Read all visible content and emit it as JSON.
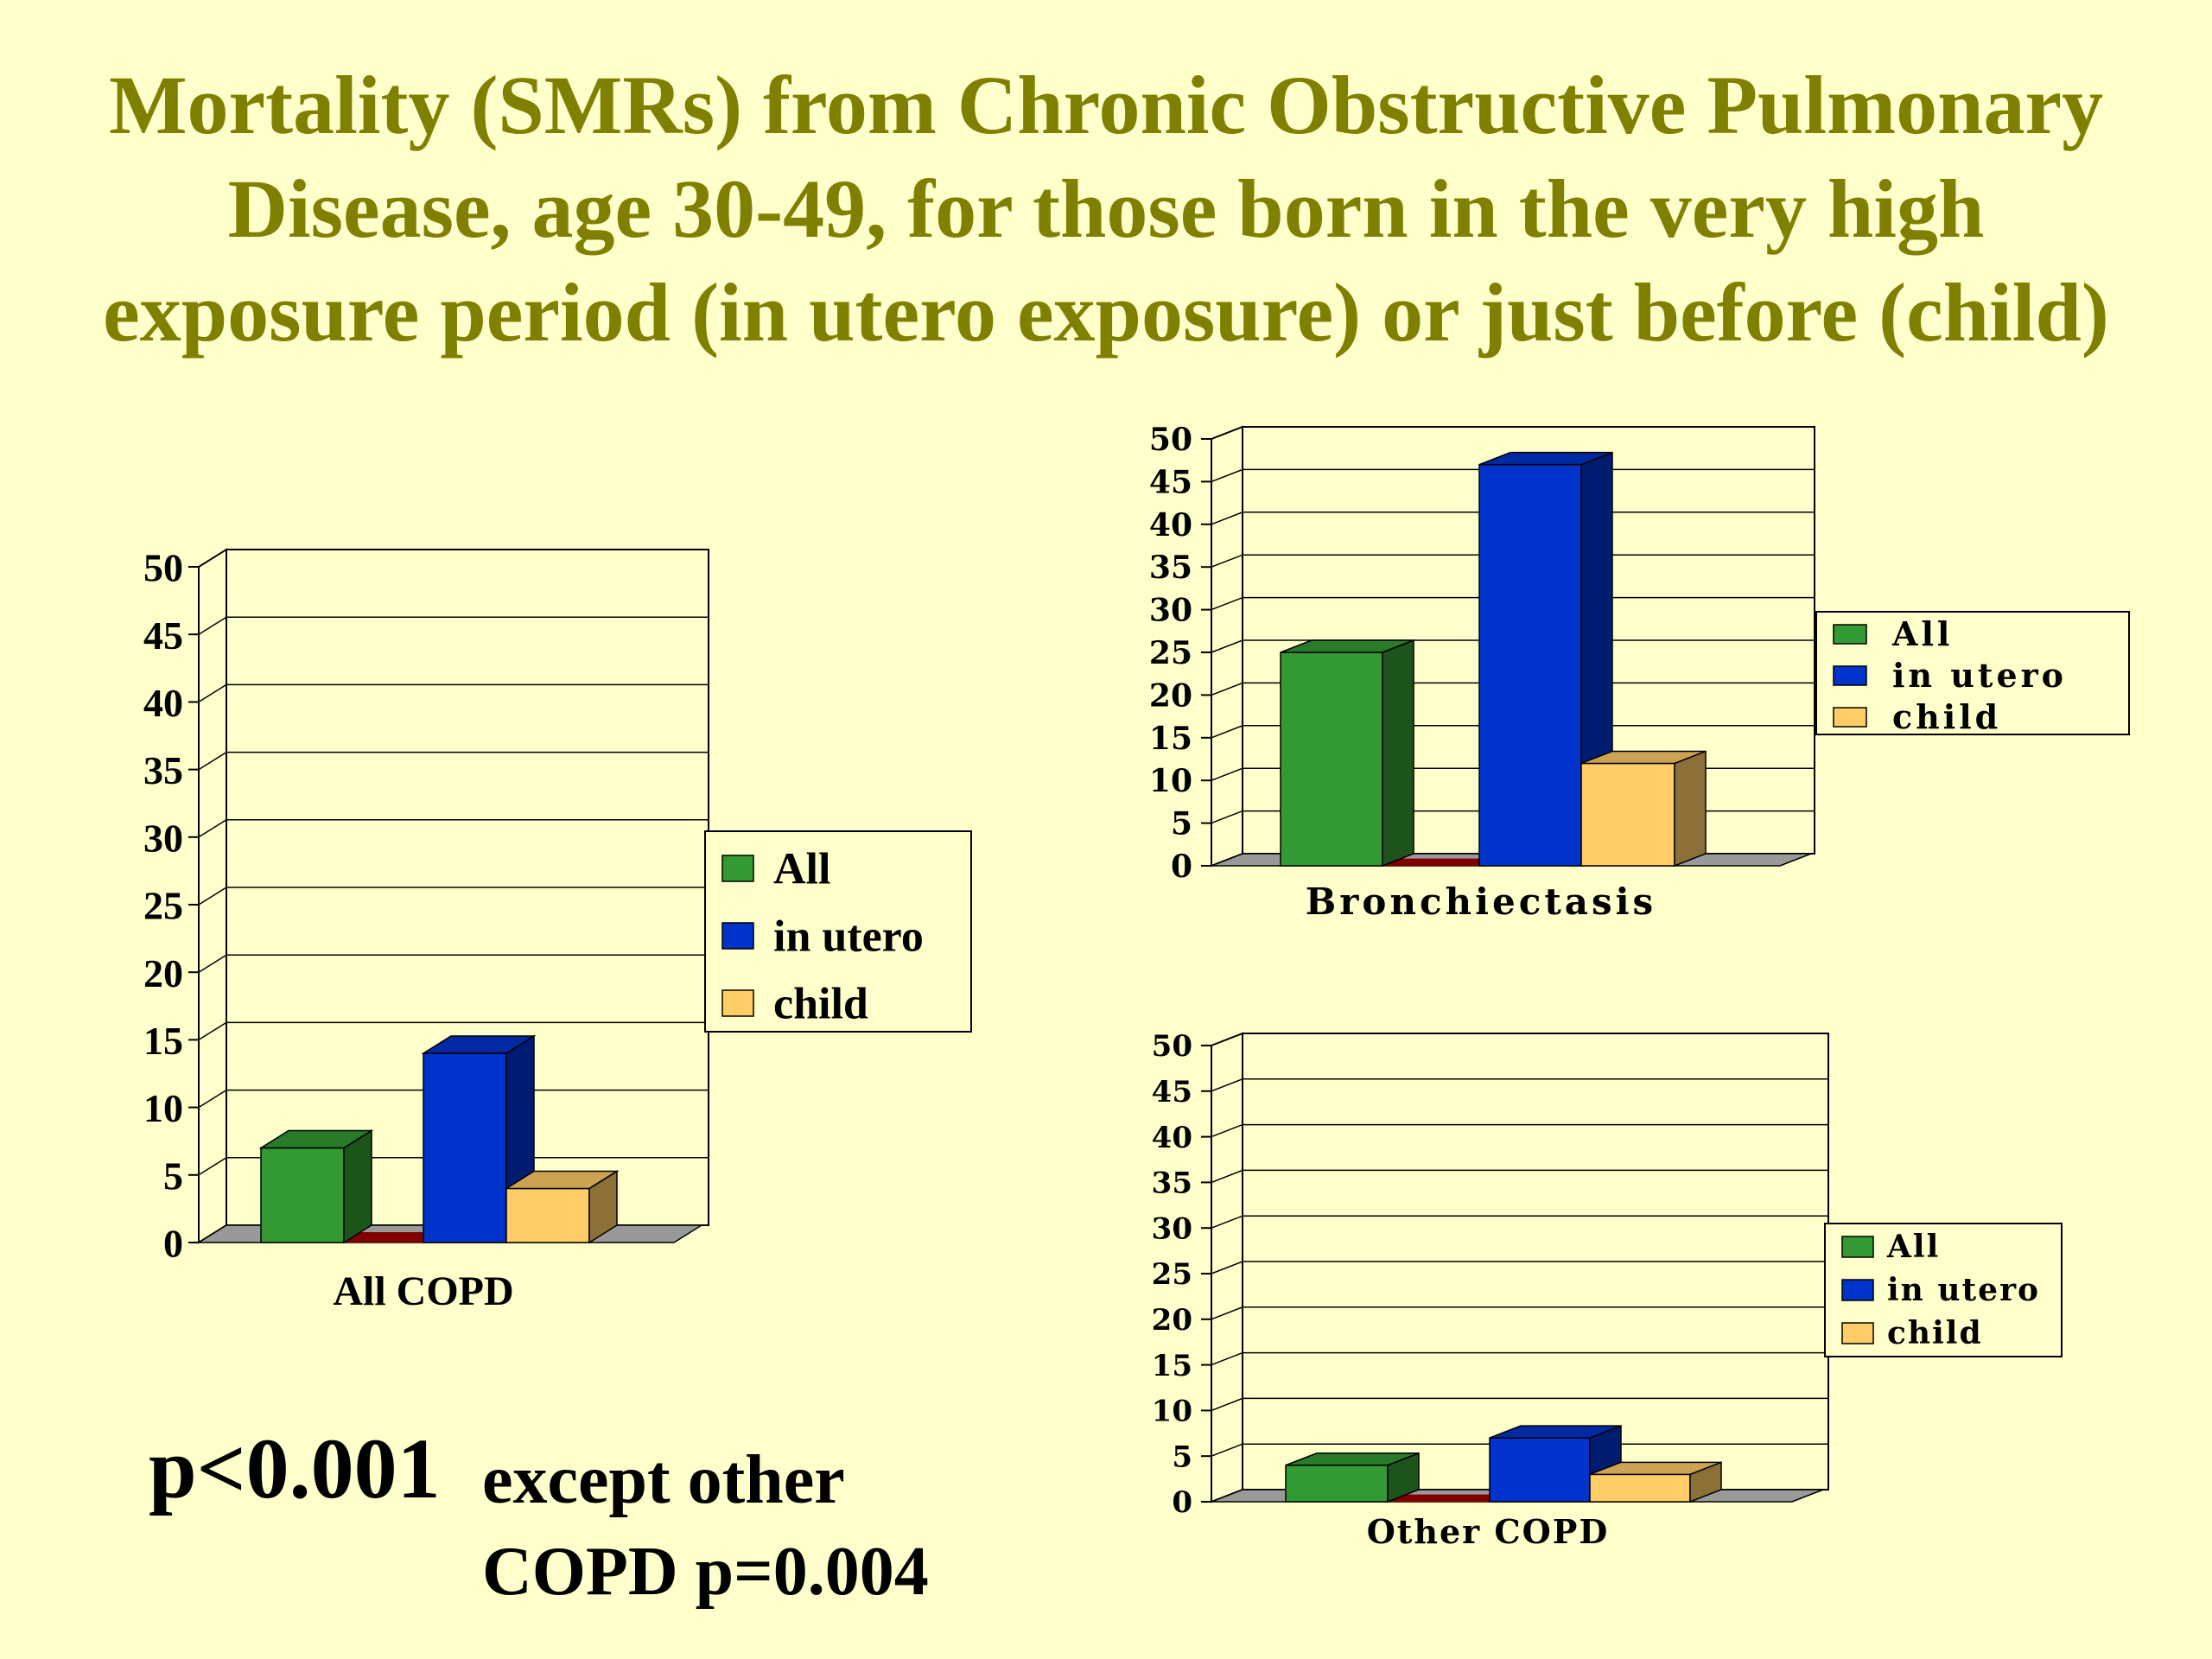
{
  "title": {
    "lines": [
      "Mortality (SMRs) from Chronic Obstructive Pulmonary",
      "Disease, age 30-49, for those born in the very high",
      "exposure period (in utero exposure) or just before (child)"
    ]
  },
  "note": {
    "p_value": "p<0.001",
    "except_lines": [
      "except other",
      "COPD p=0.004"
    ]
  },
  "colors": {
    "all": "#339933",
    "in_utero": "#0033CC",
    "child": "#FFCC66",
    "marker": "#800000",
    "floor": "#999999",
    "title": "#808000"
  },
  "chart_data": [
    {
      "type": "bar",
      "title": "",
      "categories": [
        "All COPD"
      ],
      "series": [
        {
          "name": "All",
          "values": [
            7
          ]
        },
        {
          "name": "in utero",
          "values": [
            14
          ]
        },
        {
          "name": "child",
          "values": [
            4
          ]
        }
      ],
      "xlabel": "",
      "ylabel": "",
      "ylim": [
        0,
        50
      ],
      "yticks": [
        "0",
        "5",
        "10",
        "15",
        "20",
        "25",
        "30",
        "35",
        "40",
        "45",
        "50"
      ],
      "grid": true,
      "legend": "right"
    },
    {
      "type": "bar",
      "title": "",
      "categories": [
        "Bronchiectasis"
      ],
      "series": [
        {
          "name": "All",
          "values": [
            25
          ]
        },
        {
          "name": "in utero",
          "values": [
            47
          ]
        },
        {
          "name": "child",
          "values": [
            12
          ]
        }
      ],
      "xlabel": "",
      "ylabel": "",
      "ylim": [
        0,
        50
      ],
      "yticks": [
        "0",
        "5",
        "10",
        "15",
        "20",
        "25",
        "30",
        "35",
        "40",
        "45",
        "50"
      ],
      "grid": true,
      "legend": "right"
    },
    {
      "type": "bar",
      "title": "",
      "categories": [
        "Other COPD"
      ],
      "series": [
        {
          "name": "All",
          "values": [
            4
          ]
        },
        {
          "name": "in utero",
          "values": [
            7
          ]
        },
        {
          "name": "child",
          "values": [
            3
          ]
        }
      ],
      "xlabel": "",
      "ylabel": "",
      "ylim": [
        0,
        50
      ],
      "yticks": [
        "0",
        "5",
        "10",
        "15",
        "20",
        "25",
        "30",
        "35",
        "40",
        "45",
        "50"
      ],
      "grid": true,
      "legend": "right"
    }
  ]
}
